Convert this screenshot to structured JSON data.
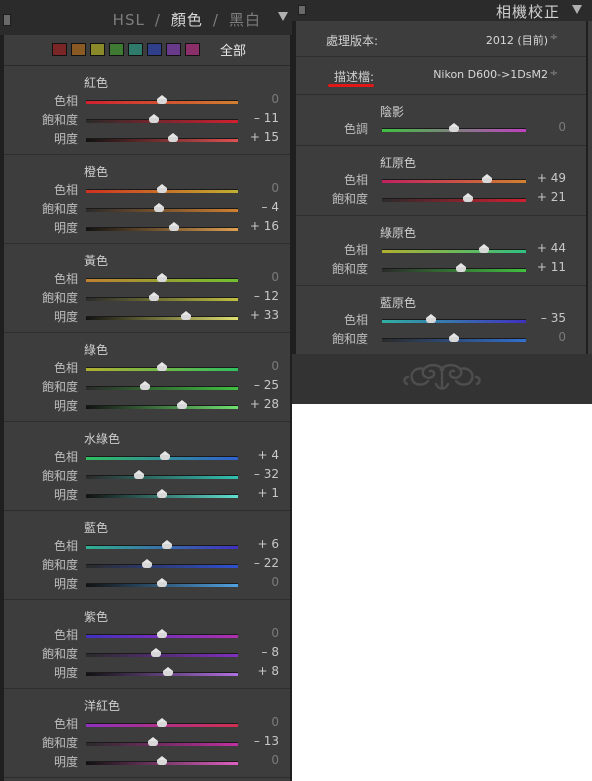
{
  "hsl_panel": {
    "tabs": [
      "HSL",
      "/",
      "顏色",
      "/",
      "黑白"
    ],
    "active_tab": "顏色",
    "swatch_colors": [
      "#7a2626",
      "#8a5a24",
      "#8a8a2a",
      "#3f7a33",
      "#2f7a6a",
      "#2f3f8a",
      "#6a3a8a",
      "#8a2f6a"
    ],
    "all_label": "全部",
    "groups": [
      {
        "title": "紅色",
        "rows": [
          {
            "label": "色相",
            "value": "0",
            "pos": 0.5,
            "grad": [
              "#d02030",
              "#d08030"
            ]
          },
          {
            "label": "飽和度",
            "value": "– 11",
            "pos": 0.45,
            "grad": [
              "#2a2a2a",
              "#d02030"
            ]
          },
          {
            "label": "明度",
            "value": "+ 15",
            "pos": 0.57,
            "grad": [
              "#111111",
              "#e05050"
            ]
          }
        ]
      },
      {
        "title": "橙色",
        "rows": [
          {
            "label": "色相",
            "value": "0",
            "pos": 0.5,
            "grad": [
              "#d03020",
              "#c0b030"
            ]
          },
          {
            "label": "飽和度",
            "value": "– 4",
            "pos": 0.48,
            "grad": [
              "#2a2a2a",
              "#d08030"
            ]
          },
          {
            "label": "明度",
            "value": "+ 16",
            "pos": 0.58,
            "grad": [
              "#111111",
              "#e0a050"
            ]
          }
        ]
      },
      {
        "title": "黃色",
        "rows": [
          {
            "label": "色相",
            "value": "0",
            "pos": 0.5,
            "grad": [
              "#c08030",
              "#70c030"
            ]
          },
          {
            "label": "飽和度",
            "value": "– 12",
            "pos": 0.45,
            "grad": [
              "#2a2a2a",
              "#c0c040"
            ]
          },
          {
            "label": "明度",
            "value": "+ 33",
            "pos": 0.66,
            "grad": [
              "#111111",
              "#e0e070"
            ]
          }
        ]
      },
      {
        "title": "綠色",
        "rows": [
          {
            "label": "色相",
            "value": "0",
            "pos": 0.5,
            "grad": [
              "#b0b030",
              "#30c060"
            ]
          },
          {
            "label": "飽和度",
            "value": "– 25",
            "pos": 0.39,
            "grad": [
              "#2a2a2a",
              "#40c040"
            ]
          },
          {
            "label": "明度",
            "value": "+ 28",
            "pos": 0.63,
            "grad": [
              "#111111",
              "#70e070"
            ]
          }
        ]
      },
      {
        "title": "水綠色",
        "rows": [
          {
            "label": "色相",
            "value": "+ 4",
            "pos": 0.52,
            "grad": [
              "#30c060",
              "#3060d0"
            ]
          },
          {
            "label": "飽和度",
            "value": "– 32",
            "pos": 0.35,
            "grad": [
              "#2a2a2a",
              "#30c0b0"
            ]
          },
          {
            "label": "明度",
            "value": "+ 1",
            "pos": 0.5,
            "grad": [
              "#111111",
              "#60e0d0"
            ]
          }
        ]
      },
      {
        "title": "藍色",
        "rows": [
          {
            "label": "色相",
            "value": "+ 6",
            "pos": 0.53,
            "grad": [
              "#30b090",
              "#4030c0"
            ]
          },
          {
            "label": "飽和度",
            "value": "– 22",
            "pos": 0.4,
            "grad": [
              "#2a2a2a",
              "#3050d0"
            ]
          },
          {
            "label": "明度",
            "value": "0",
            "pos": 0.5,
            "grad": [
              "#111111",
              "#50a0e0"
            ]
          }
        ]
      },
      {
        "title": "紫色",
        "rows": [
          {
            "label": "色相",
            "value": "0",
            "pos": 0.5,
            "grad": [
              "#4030c0",
              "#b030b0"
            ]
          },
          {
            "label": "飽和度",
            "value": "– 8",
            "pos": 0.46,
            "grad": [
              "#2a2a2a",
              "#8030c0"
            ]
          },
          {
            "label": "明度",
            "value": "+ 8",
            "pos": 0.54,
            "grad": [
              "#111111",
              "#b070e0"
            ]
          }
        ]
      },
      {
        "title": "洋紅色",
        "rows": [
          {
            "label": "色相",
            "value": "0",
            "pos": 0.5,
            "grad": [
              "#9030c0",
              "#d03050"
            ]
          },
          {
            "label": "飽和度",
            "value": "– 13",
            "pos": 0.44,
            "grad": [
              "#2a2a2a",
              "#c030a0"
            ]
          },
          {
            "label": "明度",
            "value": "0",
            "pos": 0.5,
            "grad": [
              "#111111",
              "#e060c0"
            ]
          }
        ]
      }
    ]
  },
  "calibration_panel": {
    "title": "相機校正",
    "process_label": "處理版本:",
    "process_value": "2012 (目前)",
    "profile_label": "描述檔:",
    "profile_value": "Nikon D600->1DsM2",
    "arrow_glyph": "÷",
    "groups": [
      {
        "title": "陰影",
        "rows": [
          {
            "label": "色調",
            "value": "0",
            "pos": 0.5,
            "grad": [
              "#40c040",
              "#c040c0"
            ]
          }
        ]
      },
      {
        "title": "紅原色",
        "rows": [
          {
            "label": "色相",
            "value": "+ 49",
            "pos": 0.73,
            "grad": [
              "#c02060",
              "#d08030"
            ]
          },
          {
            "label": "飽和度",
            "value": "+ 21",
            "pos": 0.6,
            "grad": [
              "#2a2a2a",
              "#d02030"
            ]
          }
        ]
      },
      {
        "title": "綠原色",
        "rows": [
          {
            "label": "色相",
            "value": "+ 44",
            "pos": 0.71,
            "grad": [
              "#b0b030",
              "#30c080"
            ]
          },
          {
            "label": "飽和度",
            "value": "+ 11",
            "pos": 0.55,
            "grad": [
              "#2a2a2a",
              "#40c040"
            ]
          }
        ]
      },
      {
        "title": "藍原色",
        "rows": [
          {
            "label": "色相",
            "value": "– 35",
            "pos": 0.34,
            "grad": [
              "#30b0a0",
              "#4030c0"
            ]
          },
          {
            "label": "飽和度",
            "value": "0",
            "pos": 0.5,
            "grad": [
              "#2a2a2a",
              "#3070d0"
            ]
          }
        ]
      }
    ]
  }
}
